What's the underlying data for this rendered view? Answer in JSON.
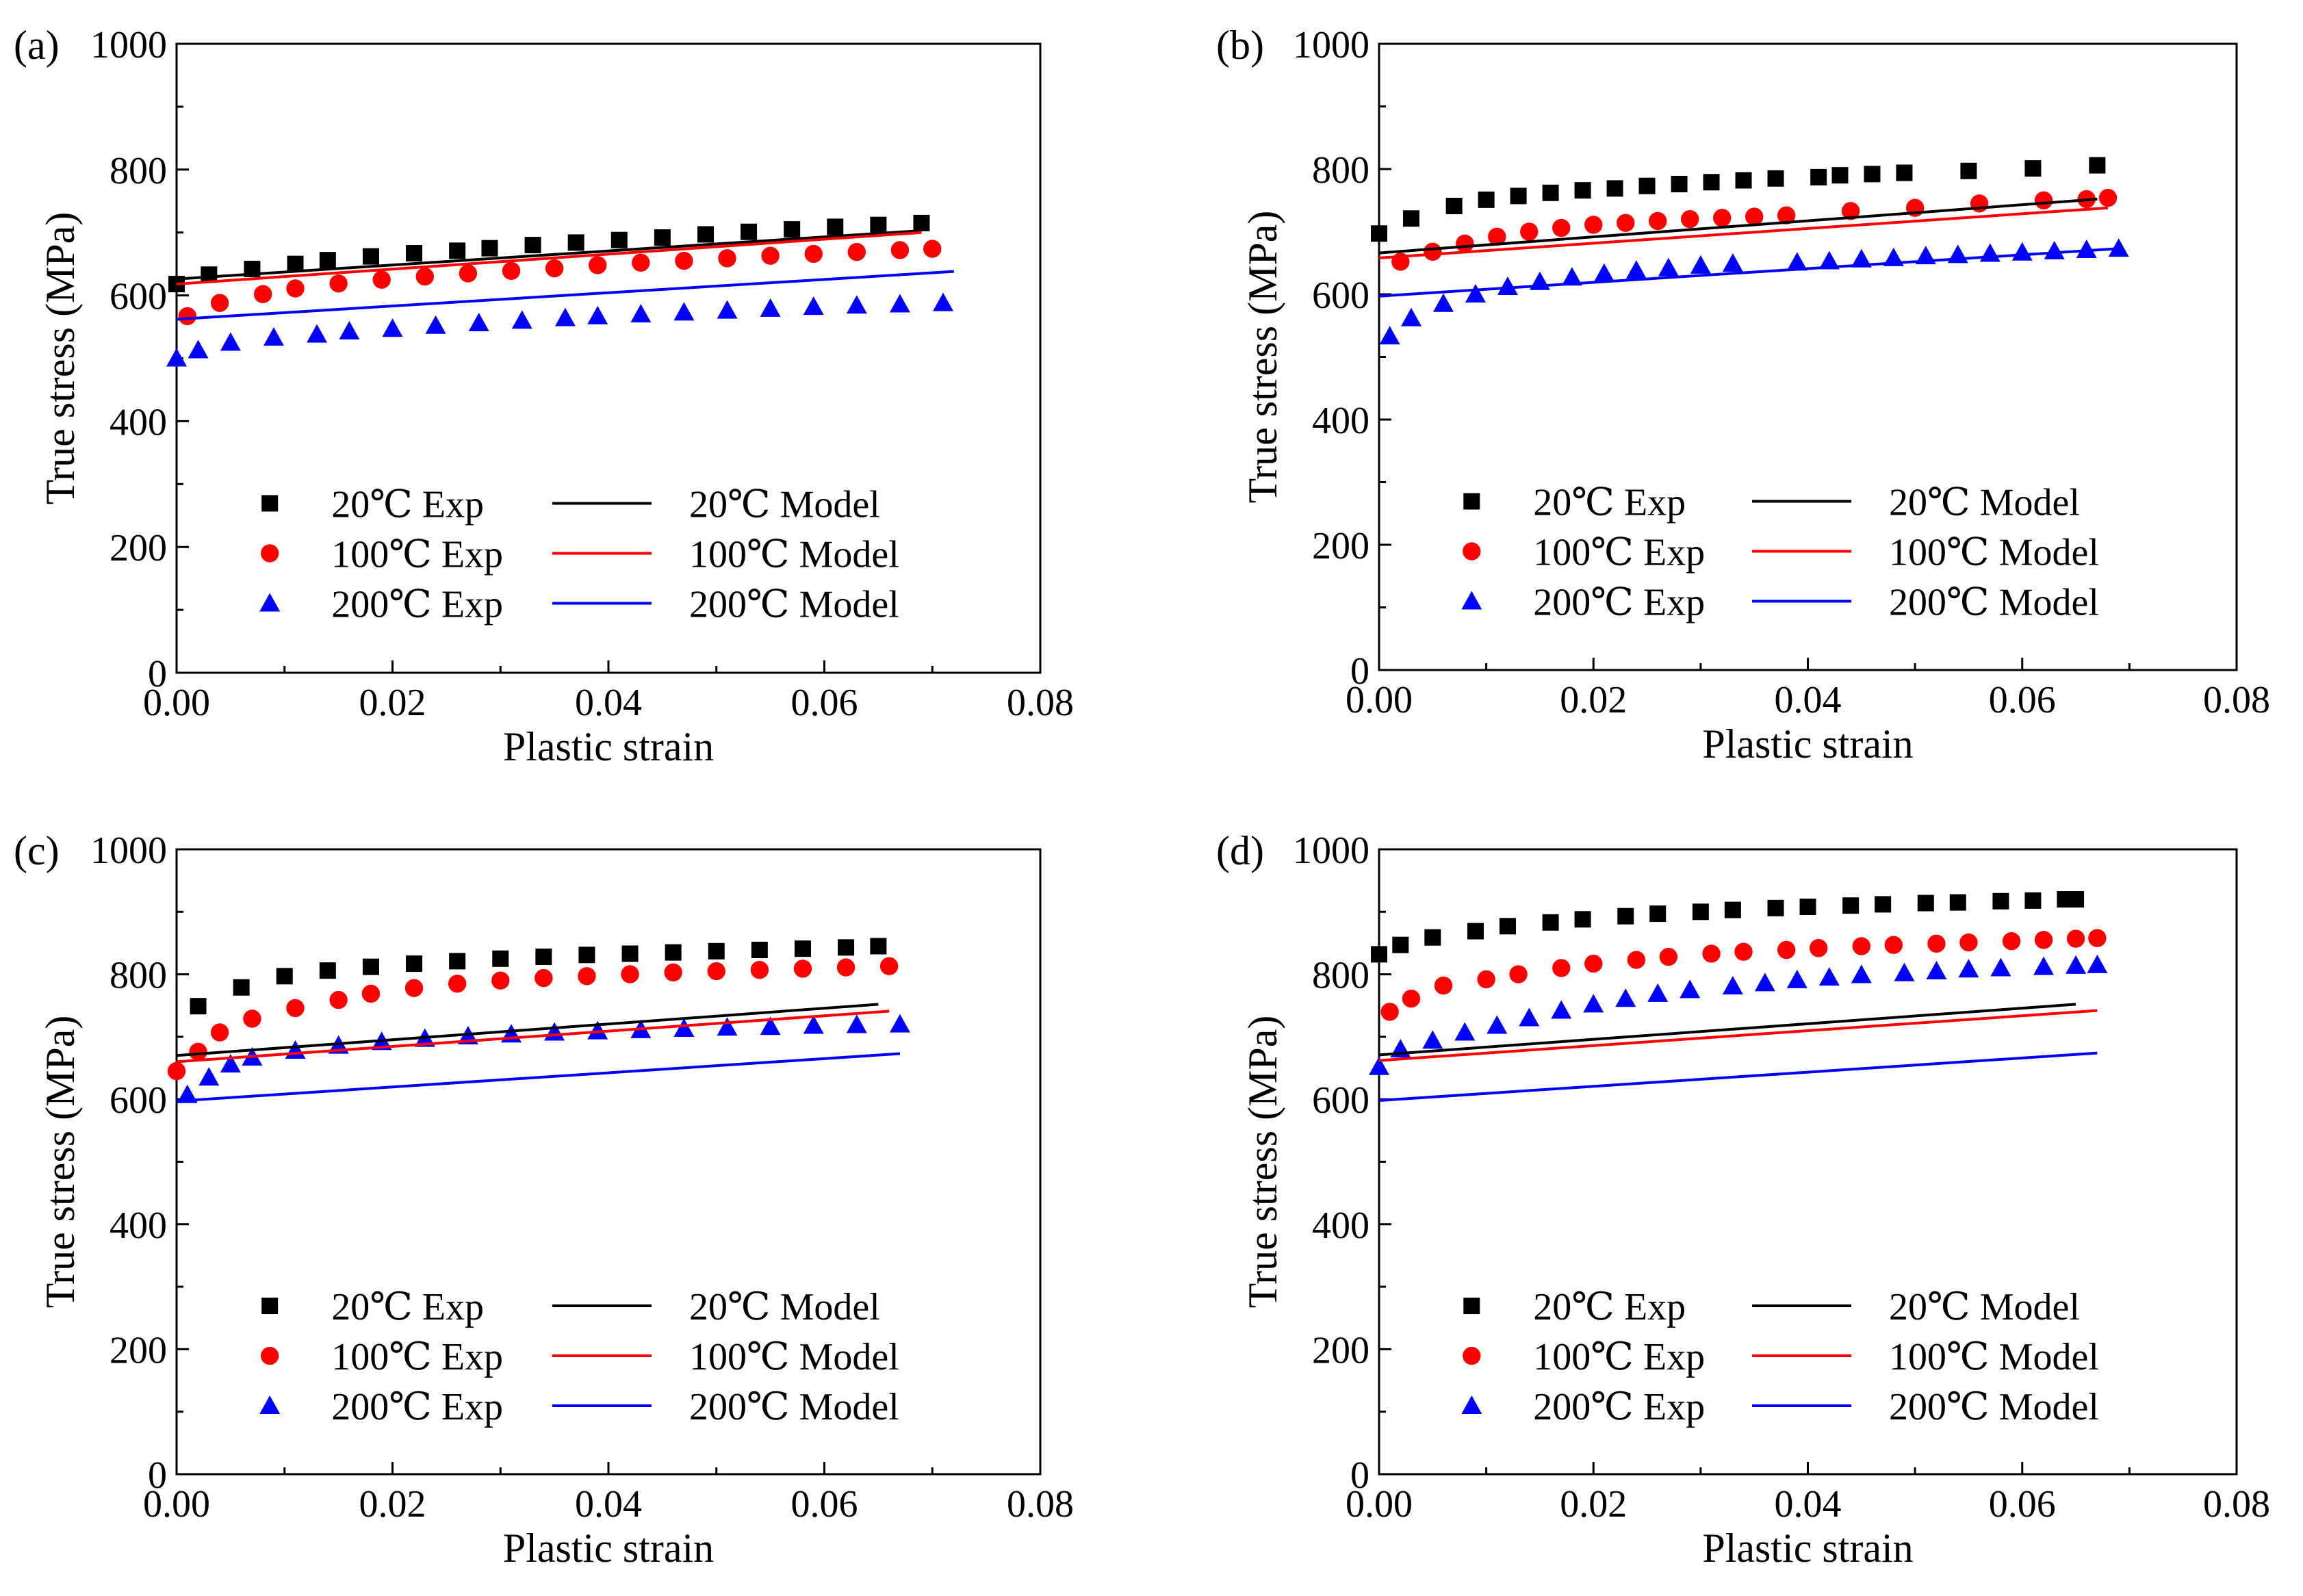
{
  "chart_data": [
    {
      "type": "scatter",
      "panel_label": "(a)",
      "xlabel": "Plastic strain",
      "ylabel": "True stress (MPa)",
      "xlim": [
        0,
        0.08
      ],
      "ylim": [
        0,
        1000
      ],
      "xticks": [
        "0.00",
        "0.02",
        "0.04",
        "0.06",
        "0.08"
      ],
      "yticks": [
        "0",
        "200",
        "400",
        "600",
        "800",
        "1000"
      ],
      "legend_position": "bottom-center",
      "series": [
        {
          "name": "20℃ Exp",
          "marker": "square",
          "color": "#000000",
          "x": [
            0.0,
            0.003,
            0.007,
            0.011,
            0.014,
            0.018,
            0.022,
            0.026,
            0.029,
            0.033,
            0.037,
            0.041,
            0.045,
            0.049,
            0.053,
            0.057,
            0.061,
            0.065,
            0.069
          ],
          "y": [
            618,
            633,
            642,
            650,
            656,
            662,
            667,
            671,
            675,
            680,
            684,
            688,
            692,
            697,
            701,
            705,
            709,
            712,
            715
          ]
        },
        {
          "name": "100℃ Exp",
          "marker": "circle",
          "color": "#ff0000",
          "x": [
            0.001,
            0.004,
            0.008,
            0.011,
            0.015,
            0.019,
            0.023,
            0.027,
            0.031,
            0.035,
            0.039,
            0.043,
            0.047,
            0.051,
            0.055,
            0.059,
            0.063,
            0.067,
            0.07
          ],
          "y": [
            567,
            588,
            602,
            611,
            619,
            625,
            630,
            635,
            639,
            643,
            648,
            652,
            655,
            659,
            663,
            666,
            669,
            672,
            674
          ]
        },
        {
          "name": "200℃ Exp",
          "marker": "triangle",
          "color": "#0000ff",
          "x": [
            0.0,
            0.002,
            0.005,
            0.009,
            0.013,
            0.016,
            0.02,
            0.024,
            0.028,
            0.032,
            0.036,
            0.039,
            0.043,
            0.047,
            0.051,
            0.055,
            0.059,
            0.063,
            0.067,
            0.071
          ],
          "y": [
            500,
            513,
            525,
            533,
            538,
            543,
            547,
            552,
            556,
            560,
            564,
            567,
            570,
            573,
            576,
            579,
            582,
            584,
            586,
            588
          ]
        },
        {
          "name": "20℃ Model",
          "marker": "line",
          "color": "#000000",
          "x": [
            0.0,
            0.069
          ],
          "y": [
            626,
            703
          ]
        },
        {
          "name": "100℃ Model",
          "marker": "line",
          "color": "#ff0000",
          "x": [
            0.0,
            0.069
          ],
          "y": [
            618,
            700
          ]
        },
        {
          "name": "200℃ Model",
          "marker": "line",
          "color": "#0000ff",
          "x": [
            0.0,
            0.072
          ],
          "y": [
            562,
            638
          ]
        }
      ]
    },
    {
      "type": "scatter",
      "panel_label": "(b)",
      "xlabel": "Plastic strain",
      "ylabel": "True stress (MPa)",
      "xlim": [
        0,
        0.08
      ],
      "ylim": [
        0,
        1000
      ],
      "xticks": [
        "0.00",
        "0.02",
        "0.04",
        "0.06",
        "0.08"
      ],
      "yticks": [
        "0",
        "200",
        "400",
        "600",
        "800",
        "1000"
      ],
      "legend_position": "bottom-center",
      "series": [
        {
          "name": "20℃ Exp",
          "marker": "square",
          "color": "#000000",
          "x": [
            0.0,
            0.003,
            0.007,
            0.01,
            0.013,
            0.016,
            0.019,
            0.022,
            0.025,
            0.028,
            0.031,
            0.034,
            0.037,
            0.041,
            0.043,
            0.046,
            0.049,
            0.055,
            0.061,
            0.067
          ],
          "y": [
            697,
            721,
            741,
            751,
            757,
            762,
            766,
            769,
            773,
            776,
            779,
            782,
            785,
            787,
            790,
            792,
            794,
            797,
            801,
            806
          ]
        },
        {
          "name": "100℃ Exp",
          "marker": "circle",
          "color": "#ff0000",
          "x": [
            0.002,
            0.005,
            0.008,
            0.011,
            0.014,
            0.017,
            0.02,
            0.023,
            0.026,
            0.029,
            0.032,
            0.035,
            0.038,
            0.044,
            0.05,
            0.056,
            0.062,
            0.066,
            0.068
          ],
          "y": [
            652,
            668,
            681,
            692,
            700,
            706,
            711,
            714,
            717,
            720,
            722,
            724,
            726,
            733,
            738,
            745,
            750,
            752,
            754
          ]
        },
        {
          "name": "200℃ Exp",
          "marker": "triangle",
          "color": "#0000ff",
          "x": [
            0.001,
            0.003,
            0.006,
            0.009,
            0.012,
            0.015,
            0.018,
            0.021,
            0.024,
            0.027,
            0.03,
            0.033,
            0.039,
            0.042,
            0.045,
            0.048,
            0.051,
            0.054,
            0.057,
            0.06,
            0.063,
            0.066,
            0.069
          ],
          "y": [
            533,
            562,
            585,
            600,
            612,
            620,
            627,
            633,
            638,
            642,
            646,
            649,
            651,
            653,
            656,
            658,
            661,
            663,
            665,
            667,
            669,
            671,
            673
          ]
        },
        {
          "name": "20℃ Model",
          "marker": "line",
          "color": "#000000",
          "x": [
            0.0,
            0.067
          ],
          "y": [
            666,
            752
          ]
        },
        {
          "name": "100℃ Model",
          "marker": "line",
          "color": "#ff0000",
          "x": [
            0.0,
            0.068
          ],
          "y": [
            658,
            738
          ]
        },
        {
          "name": "200℃ Model",
          "marker": "line",
          "color": "#0000ff",
          "x": [
            0.0,
            0.069
          ],
          "y": [
            597,
            673
          ]
        }
      ]
    },
    {
      "type": "scatter",
      "panel_label": "(c)",
      "xlabel": "Plastic strain",
      "ylabel": "True stress (MPa)",
      "xlim": [
        0,
        0.08
      ],
      "ylim": [
        0,
        1000
      ],
      "xticks": [
        "0.00",
        "0.02",
        "0.04",
        "0.06",
        "0.08"
      ],
      "yticks": [
        "0",
        "200",
        "400",
        "600",
        "800",
        "1000"
      ],
      "legend_position": "bottom-center",
      "series": [
        {
          "name": "20℃ Exp",
          "marker": "square",
          "color": "#000000",
          "x": [
            0.002,
            0.006,
            0.01,
            0.014,
            0.018,
            0.022,
            0.026,
            0.03,
            0.034,
            0.038,
            0.042,
            0.046,
            0.05,
            0.054,
            0.058,
            0.062,
            0.065
          ],
          "y": [
            749,
            779,
            797,
            806,
            812,
            817,
            821,
            825,
            828,
            831,
            833,
            835,
            837,
            839,
            841,
            843,
            845
          ]
        },
        {
          "name": "100℃ Exp",
          "marker": "circle",
          "color": "#ff0000",
          "x": [
            0.0,
            0.002,
            0.004,
            0.007,
            0.011,
            0.015,
            0.018,
            0.022,
            0.026,
            0.03,
            0.034,
            0.038,
            0.042,
            0.046,
            0.05,
            0.054,
            0.058,
            0.062,
            0.066
          ],
          "y": [
            645,
            676,
            707,
            729,
            746,
            759,
            769,
            778,
            785,
            790,
            794,
            797,
            800,
            803,
            805,
            807,
            809,
            811,
            813
          ]
        },
        {
          "name": "200℃ Exp",
          "marker": "triangle",
          "color": "#0000ff",
          "x": [
            0.001,
            0.003,
            0.005,
            0.007,
            0.011,
            0.015,
            0.019,
            0.023,
            0.027,
            0.031,
            0.035,
            0.039,
            0.043,
            0.047,
            0.051,
            0.055,
            0.059,
            0.063,
            0.067
          ],
          "y": [
            607,
            635,
            656,
            667,
            678,
            686,
            692,
            697,
            701,
            704,
            707,
            709,
            711,
            713,
            715,
            716,
            718,
            719,
            720
          ]
        },
        {
          "name": "20℃ Model",
          "marker": "line",
          "color": "#000000",
          "x": [
            0.0,
            0.065
          ],
          "y": [
            670,
            752
          ]
        },
        {
          "name": "100℃ Model",
          "marker": "line",
          "color": "#ff0000",
          "x": [
            0.0,
            0.066
          ],
          "y": [
            660,
            741
          ]
        },
        {
          "name": "200℃ Model",
          "marker": "line",
          "color": "#0000ff",
          "x": [
            0.0,
            0.067
          ],
          "y": [
            597,
            673
          ]
        }
      ]
    },
    {
      "type": "scatter",
      "panel_label": "(d)",
      "xlabel": "Plastic strain",
      "ylabel": "True stress (MPa)",
      "xlim": [
        0,
        0.08
      ],
      "ylim": [
        0,
        1000
      ],
      "xticks": [
        "0.00",
        "0.02",
        "0.04",
        "0.06",
        "0.08"
      ],
      "yticks": [
        "0",
        "200",
        "400",
        "600",
        "800",
        "1000"
      ],
      "legend_position": "bottom-center",
      "series": [
        {
          "name": "20℃ Exp",
          "marker": "square",
          "color": "#000000",
          "x": [
            0.0,
            0.002,
            0.005,
            0.009,
            0.012,
            0.016,
            0.019,
            0.023,
            0.026,
            0.03,
            0.033,
            0.037,
            0.04,
            0.044,
            0.047,
            0.051,
            0.054,
            0.058,
            0.061,
            0.064,
            0.065
          ],
          "y": [
            832,
            847,
            859,
            869,
            877,
            883,
            888,
            893,
            897,
            900,
            903,
            906,
            908,
            910,
            912,
            914,
            915,
            917,
            918,
            920,
            920
          ]
        },
        {
          "name": "100℃ Exp",
          "marker": "circle",
          "color": "#ff0000",
          "x": [
            0.001,
            0.003,
            0.006,
            0.01,
            0.013,
            0.017,
            0.02,
            0.024,
            0.027,
            0.031,
            0.034,
            0.038,
            0.041,
            0.045,
            0.048,
            0.052,
            0.055,
            0.059,
            0.062,
            0.065,
            0.067
          ],
          "y": [
            740,
            761,
            782,
            792,
            800,
            810,
            817,
            823,
            828,
            833,
            836,
            839,
            842,
            845,
            847,
            849,
            851,
            853,
            855,
            857,
            858
          ]
        },
        {
          "name": "200℃ Exp",
          "marker": "triangle",
          "color": "#0000ff",
          "x": [
            0.0,
            0.002,
            0.005,
            0.008,
            0.011,
            0.014,
            0.017,
            0.02,
            0.023,
            0.026,
            0.029,
            0.033,
            0.036,
            0.039,
            0.042,
            0.045,
            0.049,
            0.052,
            0.055,
            0.058,
            0.062,
            0.065,
            0.067
          ],
          "y": [
            652,
            680,
            694,
            707,
            718,
            730,
            742,
            752,
            761,
            769,
            775,
            781,
            786,
            791,
            795,
            799,
            802,
            805,
            808,
            810,
            812,
            814,
            815
          ]
        },
        {
          "name": "20℃ Model",
          "marker": "line",
          "color": "#000000",
          "x": [
            0.0,
            0.065
          ],
          "y": [
            671,
            752
          ]
        },
        {
          "name": "100℃ Model",
          "marker": "line",
          "color": "#ff0000",
          "x": [
            0.0,
            0.067
          ],
          "y": [
            662,
            742
          ]
        },
        {
          "name": "200℃ Model",
          "marker": "line",
          "color": "#0000ff",
          "x": [
            0.0,
            0.067
          ],
          "y": [
            598,
            674
          ]
        }
      ]
    }
  ]
}
